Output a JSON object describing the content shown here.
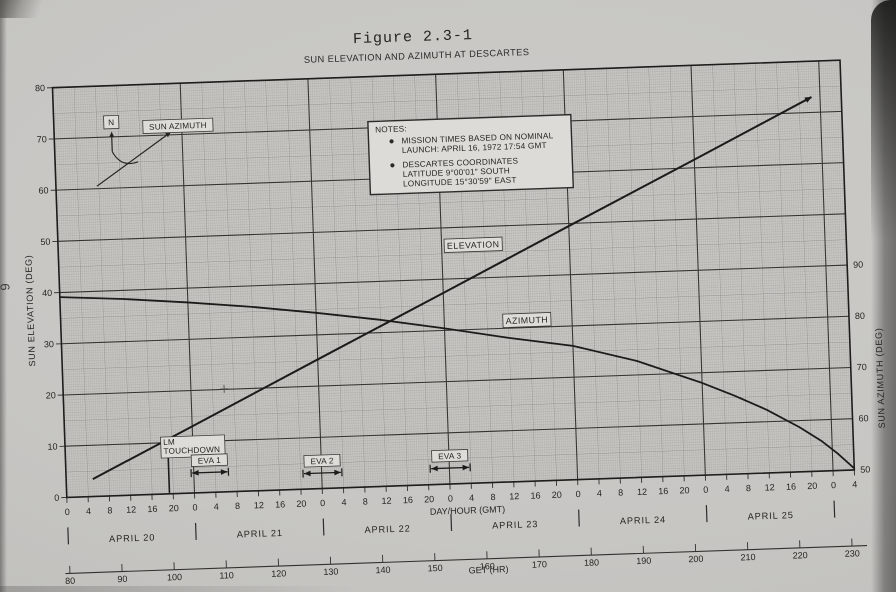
{
  "page": {
    "page_number": "6",
    "figure_label": "Figure 2.3-1",
    "title": "SUN ELEVATION AND AZIMUTH AT DESCARTES"
  },
  "notes": {
    "heading": "NOTES:",
    "b1": [
      "MISSION TIMES BASED ON NOMINAL",
      "LAUNCH:  APRIL 16, 1972 17:54 GMT"
    ],
    "b2": [
      "DESCARTES COORDINATES",
      "LATITUDE 9°00'01\" SOUTH",
      "LONGITUDE 15°30'59\" EAST"
    ]
  },
  "compass": {
    "north": "N",
    "label": "SUN AZIMUTH"
  },
  "curve_labels": {
    "elevation": "ELEVATION",
    "azimuth": "AZIMUTH"
  },
  "axes": {
    "left": {
      "title": "SUN ELEVATION (DEG)",
      "ticks": [
        0,
        10,
        20,
        30,
        40,
        50,
        60,
        70,
        80
      ]
    },
    "right": {
      "title": "SUN AZIMUTH (DEG)",
      "ticks": [
        50,
        60,
        70,
        80,
        90
      ]
    },
    "x": {
      "title": "DAY/HOUR (GMT)",
      "hour_labels": [
        "0",
        "4",
        "8",
        "12",
        "16",
        "20"
      ],
      "trailing_hour_labels": [
        "0",
        "4"
      ],
      "days": [
        "APRIL 20",
        "APRIL 21",
        "APRIL 22",
        "APRIL 23",
        "APRIL 24",
        "APRIL 25"
      ]
    },
    "get": {
      "title": "GET (HR)",
      "ticks": [
        80,
        90,
        100,
        110,
        120,
        130,
        140,
        150,
        160,
        170,
        180,
        190,
        200,
        210,
        220,
        230
      ]
    }
  },
  "chart_data": {
    "type": "line",
    "title": "SUN ELEVATION AND AZIMUTH AT DESCARTES",
    "x_unit": "hours GMT from April 20 00:00",
    "x_range": [
      0,
      148
    ],
    "left_axis": {
      "label": "SUN ELEVATION (DEG)",
      "range": [
        0,
        80
      ]
    },
    "right_axis": {
      "label": "SUN AZIMUTH (DEG)",
      "labeled_range": [
        50,
        90
      ],
      "maps_to_elevation_scale": "azimuth = elevation + 50"
    },
    "grid": "fine engineering graph grid, majors every 4 hr and 5 deg, heavy every 24 hr and 10 deg",
    "series": [
      {
        "name": "ELEVATION",
        "axis": "left",
        "points": [
          [
            5,
            3.4
          ],
          [
            24,
            13.0
          ],
          [
            48,
            25.2
          ],
          [
            72,
            37.3
          ],
          [
            96,
            49.5
          ],
          [
            120,
            61.6
          ],
          [
            142.4,
            73.0
          ]
        ]
      },
      {
        "name": "AZIMUTH",
        "axis": "right",
        "points": [
          [
            0,
            89.1
          ],
          [
            12,
            88.3
          ],
          [
            24,
            87.2
          ],
          [
            36,
            85.9
          ],
          [
            48,
            84.3
          ],
          [
            60,
            82.5
          ],
          [
            72,
            80.4
          ],
          [
            84,
            78.1
          ],
          [
            96,
            76.1
          ],
          [
            108,
            72.7
          ],
          [
            120,
            68.0
          ],
          [
            126,
            65.3
          ],
          [
            132,
            62.3
          ],
          [
            138,
            58.7
          ],
          [
            142,
            55.9
          ],
          [
            145,
            53.3
          ],
          [
            148,
            50.3
          ]
        ]
      }
    ],
    "events": [
      {
        "label": "LM TOUCHDOWN",
        "label_lines": [
          "LM",
          "TOUCHDOWN"
        ],
        "hour": 19.3
      },
      {
        "label": "EVA 1",
        "start_hour": 23.5,
        "end_hour": 30.5
      },
      {
        "label": "EVA 2",
        "start_hour": 44.5,
        "end_hour": 51.8
      },
      {
        "label": "EVA 3",
        "start_hour": 68.4,
        "end_hour": 75.9
      }
    ]
  }
}
